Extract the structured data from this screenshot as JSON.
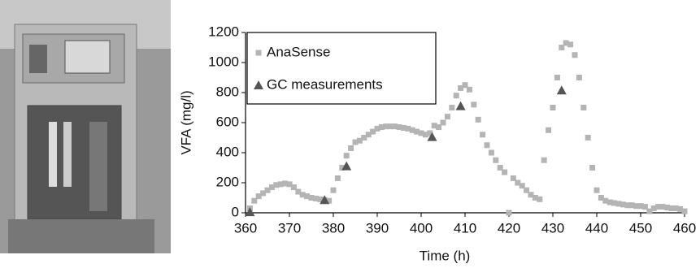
{
  "chart_data": {
    "type": "scatter",
    "x_label": "Time (h)",
    "y_label": "VFA (mg/l)",
    "xlim": [
      360,
      460
    ],
    "xticks": [
      360,
      370,
      380,
      390,
      400,
      410,
      420,
      430,
      440,
      450,
      460
    ],
    "ylim": [
      0,
      1200
    ],
    "yticks": [
      0,
      200,
      400,
      600,
      800,
      1000,
      1200
    ],
    "legend": "upper left",
    "series": [
      {
        "name": "AnaSense",
        "color": "#b4b4b4",
        "marker": "square",
        "x": [
          361,
          362,
          363,
          364,
          365,
          366,
          367,
          368,
          369,
          370,
          371,
          372,
          373,
          374,
          375,
          376,
          377,
          378,
          379,
          380,
          381,
          382,
          383,
          384,
          385,
          386,
          387,
          388,
          389,
          390,
          391,
          392,
          393,
          394,
          395,
          396,
          397,
          398,
          399,
          400,
          401,
          402,
          403,
          404,
          405,
          406,
          407,
          408,
          409,
          410,
          411,
          412,
          413,
          414,
          415,
          416,
          417,
          418,
          419,
          420,
          421,
          422,
          423,
          424,
          425,
          426,
          427,
          428,
          429,
          430,
          431,
          432,
          433,
          434,
          435,
          436,
          437,
          438,
          439,
          440,
          441,
          442,
          443,
          444,
          445,
          446,
          447,
          448,
          449,
          450,
          451,
          452,
          453,
          454,
          455,
          456,
          457,
          458,
          459,
          460
        ],
        "values": [
          30,
          80,
          110,
          130,
          150,
          170,
          185,
          190,
          195,
          190,
          170,
          140,
          120,
          110,
          100,
          95,
          90,
          85,
          80,
          150,
          230,
          300,
          380,
          430,
          470,
          480,
          500,
          520,
          540,
          560,
          570,
          575,
          575,
          575,
          570,
          565,
          560,
          550,
          540,
          530,
          520,
          530,
          580,
          570,
          600,
          640,
          700,
          780,
          830,
          850,
          820,
          720,
          620,
          520,
          450,
          400,
          350,
          300,
          270,
          0,
          230,
          200,
          180,
          150,
          120,
          100,
          90,
          350,
          550,
          700,
          900,
          1100,
          1130,
          1120,
          1050,
          900,
          700,
          500,
          300,
          150,
          100,
          80,
          70,
          65,
          60,
          55,
          50,
          50,
          45,
          45,
          40,
          10,
          30,
          40,
          40,
          35,
          30,
          30,
          25,
          10
        ]
      },
      {
        "name": "GC measurements",
        "color": "#555555",
        "marker": "triangle",
        "x": [
          361,
          378,
          383,
          402.5,
          409,
          432
        ],
        "values": [
          5,
          85,
          310,
          505,
          710,
          815
        ]
      }
    ]
  }
}
